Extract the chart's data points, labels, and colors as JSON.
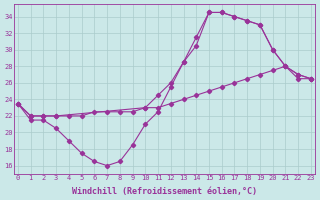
{
  "background_color": "#cbe8e8",
  "grid_color": "#aacccc",
  "line_color": "#993399",
  "marker_color": "#993399",
  "xlabel": "Windchill (Refroidissement éolien,°C)",
  "xlabel_fontsize": 6,
  "yticks": [
    16,
    18,
    20,
    22,
    24,
    26,
    28,
    30,
    32,
    34
  ],
  "xticks": [
    0,
    1,
    2,
    3,
    4,
    5,
    6,
    7,
    8,
    9,
    10,
    11,
    12,
    13,
    14,
    15,
    16,
    17,
    18,
    19,
    20,
    21,
    22,
    23
  ],
  "xlim": [
    -0.3,
    23.3
  ],
  "ylim": [
    15.0,
    35.5
  ],
  "series1_x": [
    0,
    1,
    2,
    3,
    4,
    5,
    6,
    7,
    8,
    9,
    10,
    11,
    12,
    13,
    14,
    15,
    16,
    17,
    18,
    19,
    20,
    21,
    22,
    23
  ],
  "series1_y": [
    23.5,
    21.5,
    21.5,
    20.5,
    19.0,
    17.5,
    16.5,
    16.0,
    16.5,
    18.5,
    21.0,
    22.5,
    25.5,
    28.5,
    31.5,
    34.5,
    34.5,
    34.0,
    33.5,
    33.0,
    30.0,
    28.0,
    27.0,
    26.5
  ],
  "series2_x": [
    0,
    1,
    2,
    3,
    4,
    5,
    6,
    7,
    8,
    9,
    10,
    11,
    12,
    13,
    14,
    15,
    16,
    17,
    18,
    19,
    20,
    21,
    22,
    23
  ],
  "series2_y": [
    23.5,
    22.0,
    22.0,
    22.0,
    22.0,
    22.0,
    22.5,
    22.5,
    22.5,
    22.5,
    23.0,
    23.0,
    23.5,
    24.0,
    24.5,
    25.0,
    25.5,
    26.0,
    26.5,
    27.0,
    27.5,
    28.0,
    26.5,
    26.5
  ],
  "series3_x": [
    0,
    1,
    2,
    3,
    10,
    11,
    12,
    13,
    14,
    15,
    16,
    17,
    18,
    19,
    20,
    21,
    22,
    23
  ],
  "series3_y": [
    23.5,
    22.0,
    22.0,
    22.0,
    23.0,
    24.5,
    26.0,
    28.5,
    30.5,
    34.5,
    34.5,
    34.0,
    33.5,
    33.0,
    30.0,
    28.0,
    27.0,
    26.5
  ]
}
